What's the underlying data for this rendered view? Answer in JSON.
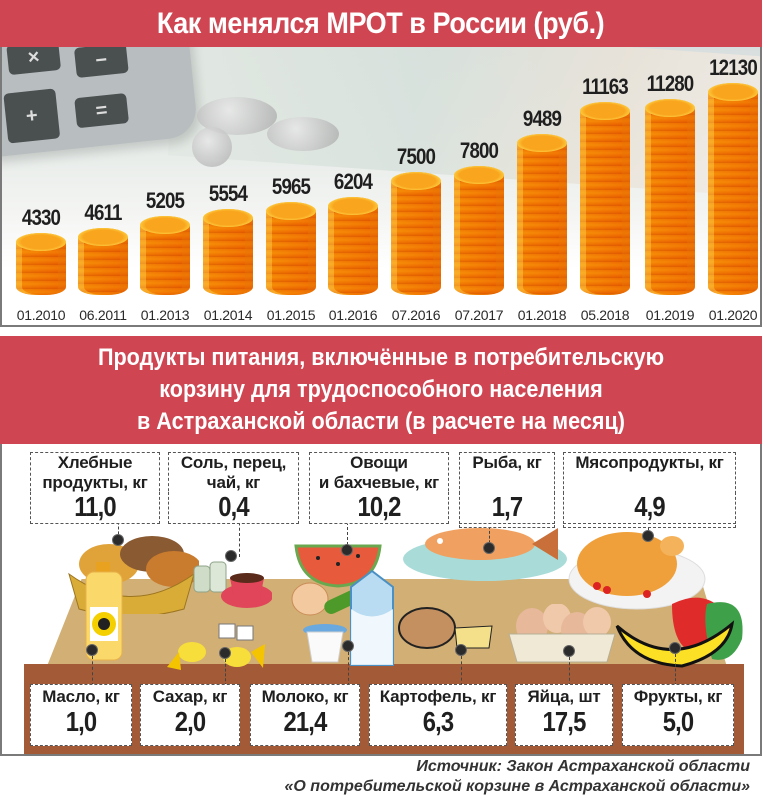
{
  "header": {
    "title": "Как менялся МРОТ в России (руб.)"
  },
  "chart_data": {
    "type": "bar",
    "title": "Как менялся МРОТ в России (руб.)",
    "xlabel": "",
    "ylabel": "руб.",
    "categories": [
      "01.2010",
      "06.2011",
      "01.2013",
      "01.2014",
      "01.2015",
      "01.2016",
      "07.2016",
      "07.2017",
      "01.2018",
      "05.2018",
      "01.2019",
      "01.2020"
    ],
    "values": [
      4330,
      4611,
      5205,
      5554,
      5965,
      6204,
      7500,
      7800,
      9489,
      11163,
      11280,
      12130
    ],
    "value_labels": [
      "4330",
      "4611",
      "5205",
      "5554",
      "5965",
      "6204",
      "7500",
      "7800",
      "9489",
      "11163",
      "11280",
      "12130"
    ],
    "grid": false,
    "legend": null,
    "bar_style": "stacked coins"
  },
  "food_section": {
    "title_lines": [
      "Продукты питания, включённые в потребительскую",
      "корзину для трудоспособного населения",
      "в Астраханской области (в расчете на месяц)"
    ],
    "top_items": [
      {
        "label_lines": [
          "Хлебные",
          "продукты, кг"
        ],
        "value": "11,0"
      },
      {
        "label_lines": [
          "Соль, перец,",
          "чай, кг"
        ],
        "value": "0,4"
      },
      {
        "label_lines": [
          "Овощи",
          "и бахчевые, кг"
        ],
        "value": "10,2"
      },
      {
        "label_lines": [
          "Рыба, кг",
          ""
        ],
        "value": "1,7"
      },
      {
        "label_lines": [
          "Мясопродукты, кг",
          ""
        ],
        "value": "4,9"
      }
    ],
    "bottom_items": [
      {
        "label": "Масло, кг",
        "value": "1,0"
      },
      {
        "label": "Сахар, кг",
        "value": "2,0"
      },
      {
        "label": "Молоко, кг",
        "value": "21,4"
      },
      {
        "label": "Картофель, кг",
        "value": "6,3"
      },
      {
        "label": "Яйца, шт",
        "value": "17,5"
      },
      {
        "label": "Фрукты, кг",
        "value": "5,0"
      }
    ]
  },
  "source": {
    "line1": "Источник: Закон Астраханской области",
    "line2": "«О потребительской корзине в Астраханской области»"
  },
  "colors": {
    "banner": "#cf4552",
    "coin": "#f6a81a",
    "table": "#d2af74",
    "table_edge": "#a25a37"
  }
}
